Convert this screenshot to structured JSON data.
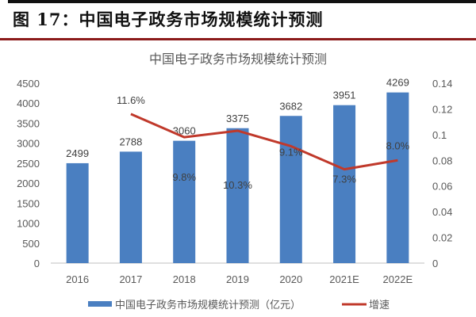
{
  "header": {
    "figure_title": "图 17：中国电子政务市场规模统计预测"
  },
  "chart_data": {
    "type": "bar+line",
    "title": "中国电子政务市场规模统计预测",
    "categories": [
      "2016",
      "2017",
      "2018",
      "2019",
      "2020",
      "2021E",
      "2022E"
    ],
    "series": [
      {
        "name": "中国电子政务市场规模统计预测（亿元）",
        "type": "bar",
        "axis": "left",
        "color": "#4a7fc1",
        "values": [
          2499,
          2788,
          3060,
          3375,
          3682,
          3951,
          4269
        ],
        "labels": [
          "2499",
          "2788",
          "3060",
          "3375",
          "3682",
          "3951",
          "4269"
        ]
      },
      {
        "name": "增速",
        "type": "line",
        "axis": "right",
        "color": "#c0392b",
        "values": [
          null,
          0.116,
          0.098,
          0.103,
          0.091,
          0.073,
          0.08
        ],
        "labels": [
          "",
          "11.6%",
          "9.8%",
          "10.3%",
          "9.1%",
          "7.3%",
          "8.0%"
        ]
      }
    ],
    "left_axis": {
      "ylim": [
        0,
        4500
      ],
      "ticks": [
        "0",
        "500",
        "1000",
        "1500",
        "2000",
        "2500",
        "3000",
        "3500",
        "4000",
        "4500"
      ]
    },
    "right_axis": {
      "ylim": [
        0,
        0.14
      ],
      "ticks": [
        "0",
        "0.02",
        "0.04",
        "0.06",
        "0.08",
        "0.1",
        "0.12",
        "0.14"
      ]
    },
    "grid": false,
    "legend": "bottom"
  }
}
